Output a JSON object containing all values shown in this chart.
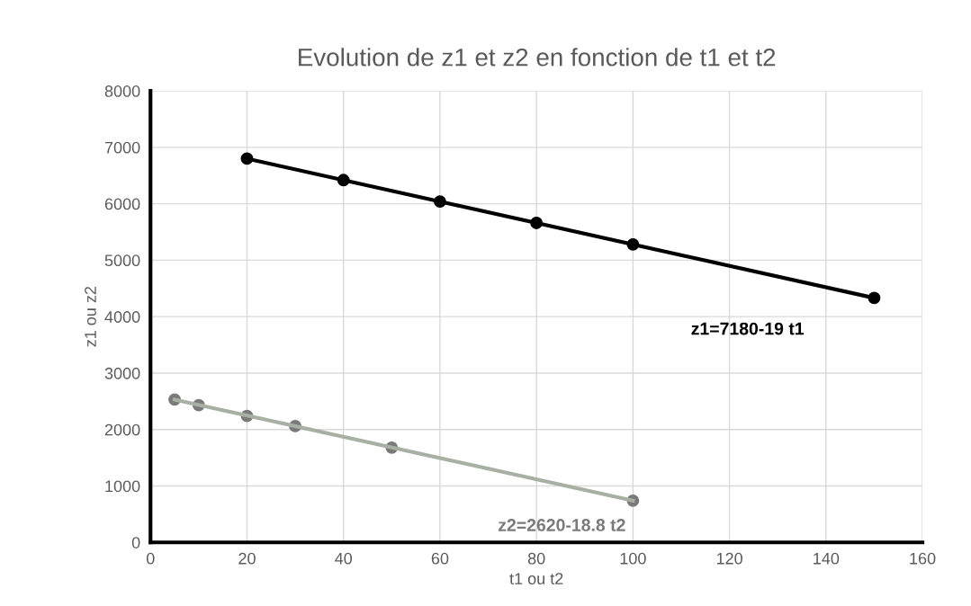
{
  "chart_data": {
    "type": "scatter",
    "title": "Evolution de z1 et z2 en fonction de t1 et t2",
    "xlabel": "t1 ou t2",
    "ylabel": "z1 ou z2",
    "series": [
      {
        "color": "#000000",
        "x": [
          20,
          40,
          60,
          80,
          100,
          150
        ],
        "values": [
          6800,
          6420,
          6040,
          5660,
          5280,
          4330
        ]
      },
      {
        "type": "line",
        "marker": "none",
        "color": "#000000",
        "x": [
          20,
          150
        ],
        "values": [
          6800,
          4330
        ]
      },
      {
        "type": "line",
        "marker": "none",
        "color": "#a8b0a4",
        "x": [
          5,
          100
        ],
        "values": [
          2530,
          740
        ]
      },
      {
        "color": "#7a7a7a",
        "x": [
          5,
          10,
          20,
          30,
          50,
          100
        ],
        "values": [
          2530,
          2430,
          2240,
          2060,
          1680,
          740
        ]
      }
    ],
    "annotations": [
      "z1=7180-19 t1",
      "z2=2620-18.8 t2"
    ],
    "xlim": [
      0,
      160
    ],
    "xticks": [
      0,
      20,
      40,
      60,
      80,
      100,
      120,
      140,
      160
    ],
    "ylim": [
      0,
      8000
    ],
    "yticks": [
      0,
      1000,
      2000,
      3000,
      4000,
      5000,
      6000,
      7000,
      8000
    ],
    "grid": true,
    "marker": "circle",
    "line_style": "solid"
  }
}
